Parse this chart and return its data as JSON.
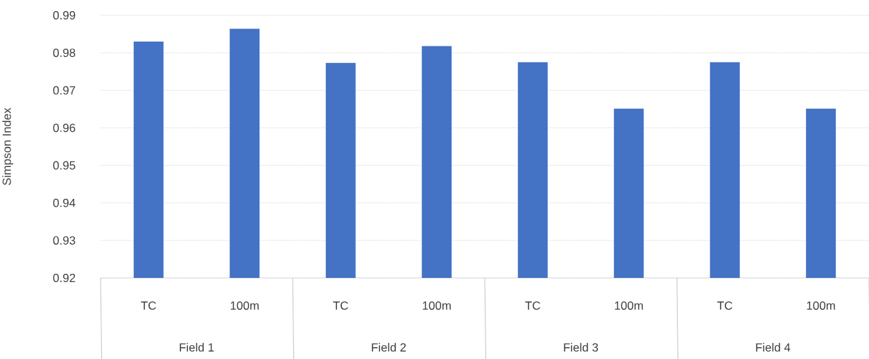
{
  "chart_data": {
    "type": "bar",
    "ylabel": "Simpson Index",
    "categories": [
      "TC",
      "100m",
      "TC",
      "100m",
      "TC",
      "100m",
      "TC",
      "100m"
    ],
    "values": [
      0.983,
      0.9864,
      0.9773,
      0.9818,
      0.9775,
      0.9651,
      0.9775,
      0.9651
    ],
    "color": "#4472c4",
    "ylim": [
      0.92,
      0.99
    ],
    "yticks": [
      0.92,
      0.93,
      0.94,
      0.95,
      0.96,
      0.97,
      0.98,
      0.99
    ],
    "grid": "y",
    "annotations": [
      "Field 1",
      "Field 2",
      "Field 3",
      "Field 4"
    ]
  }
}
